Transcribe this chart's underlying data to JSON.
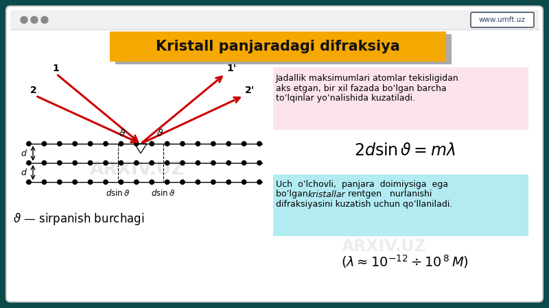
{
  "bg_outer": "#0d4a4a",
  "bg_browser": "#ffffff",
  "bg_titlebar": "#f0f0f0",
  "url_text": "www.umft.uz",
  "title_text": "Kristall panjaradagi difraksiya",
  "title_bg": "#f5a800",
  "title_shadow_color": "#999999",
  "title_text_color": "#111111",
  "pink_box_color": "#fce4ec",
  "cyan_box_color": "#b2ebf2",
  "text1_line1": "Jadallik maksimumlari atomlar tekisligidan",
  "text1_line2": "aks etgan, bir xil fazada bo’lgan barcha",
  "text1_line3": "to’lqinlar yo’nalishida kuzatiladi.",
  "formula1": "$2d\\sin\\vartheta = m\\lambda$",
  "text2_line1a": "Uch  o’lchovli,  panjara  doimiysiga  ega",
  "text2_line2a": "bo’lgan  ",
  "text2_italic": "kristallar",
  "text2_line2b": "  rentgen   nurlanishi",
  "text2_line3": "difraksiyasini kuzatish uchun qo’llaniladi.",
  "formula2": "$\\left(\\lambda \\approx 10^{-12} \\div 10^{\\,8}\\, M\\right)$",
  "theta_label": "$\\vartheta$ — sirpanish burchagi",
  "watermark1": "ARXIV.UZ",
  "watermark2": "ARXIV.UZ"
}
